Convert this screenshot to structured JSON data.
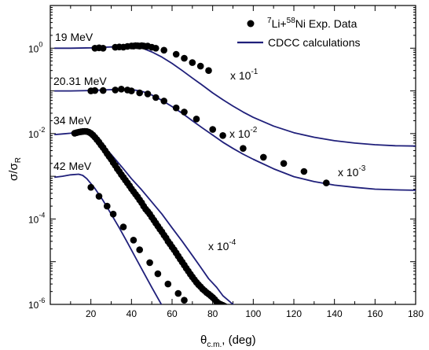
{
  "chart_data": {
    "type": "scatter",
    "x_axis": {
      "label_main": "θ",
      "label_sub": "c.m.",
      "label_unit": ", (deg)",
      "range": [
        0,
        180
      ],
      "ticks": [
        20,
        40,
        60,
        80,
        100,
        120,
        140,
        160,
        180
      ],
      "tick_labels": [
        "20",
        "40",
        "60",
        "80",
        "100",
        "120",
        "140",
        "160",
        "180"
      ]
    },
    "y_axis": {
      "label_main": "σ/σ",
      "label_sub": "R",
      "scale": "log",
      "range_log10": [
        -6,
        1
      ],
      "tick_decades": [
        -6,
        -4,
        -2,
        0
      ],
      "tick_labels": [
        {
          "base": "10",
          "exp": "-6"
        },
        {
          "base": "10",
          "exp": "-4"
        },
        {
          "base": "10",
          "exp": "-2"
        },
        {
          "base": "10",
          "exp": "0"
        }
      ]
    },
    "legend": {
      "position": "top-right",
      "entries": [
        {
          "kind": "marker",
          "text_pre": "",
          "sup1": "7",
          "text_mid": "Li+",
          "sup2": "58",
          "text_post": "Ni Exp. Data"
        },
        {
          "kind": "line",
          "text": "CDCC calculations"
        }
      ]
    },
    "line_color": "#1f1f7a",
    "marker_color": "#000000",
    "series": [
      {
        "energy_label": "19 MeV",
        "scale_base": "x  10",
        "scale_exp": "-1",
        "cdcc": {
          "x": [
            2,
            10,
            20,
            26,
            30,
            34,
            38,
            42,
            46,
            50,
            55,
            60,
            65,
            70,
            75,
            80,
            85,
            90,
            95,
            100,
            110,
            120,
            130,
            140,
            150,
            160,
            170,
            180
          ],
          "y": [
            1.0,
            1.0,
            1.02,
            1.05,
            1.07,
            1.09,
            1.1,
            1.08,
            0.98,
            0.82,
            0.62,
            0.44,
            0.3,
            0.2,
            0.135,
            0.09,
            0.062,
            0.044,
            0.032,
            0.024,
            0.015,
            0.0105,
            0.0082,
            0.0068,
            0.006,
            0.0055,
            0.0052,
            0.0051
          ]
        },
        "data": {
          "x": [
            22,
            24,
            26,
            32,
            34,
            36,
            38,
            40,
            41,
            42,
            43,
            44,
            45,
            46,
            47,
            48,
            50,
            52,
            56,
            62,
            66,
            70,
            74,
            78
          ],
          "y": [
            1.0,
            1.02,
            1.0,
            1.05,
            1.07,
            1.06,
            1.1,
            1.13,
            1.12,
            1.15,
            1.14,
            1.12,
            1.15,
            1.13,
            1.1,
            1.12,
            1.05,
            1.0,
            0.9,
            0.72,
            0.58,
            0.46,
            0.38,
            0.3
          ]
        }
      },
      {
        "energy_label": "20.31 MeV",
        "scale_base": "x  10",
        "scale_exp": "-2",
        "cdcc": {
          "x": [
            2,
            10,
            20,
            26,
            30,
            34,
            38,
            42,
            46,
            50,
            55,
            60,
            65,
            70,
            75,
            80,
            85,
            90,
            95,
            100,
            110,
            120,
            130,
            140,
            150,
            160,
            170,
            180
          ],
          "y": [
            0.1,
            0.1,
            0.102,
            0.105,
            0.107,
            0.108,
            0.108,
            0.104,
            0.095,
            0.08,
            0.06,
            0.043,
            0.03,
            0.02,
            0.0135,
            0.0092,
            0.0063,
            0.0045,
            0.0033,
            0.0025,
            0.0015,
            0.00098,
            0.00075,
            0.00062,
            0.00055,
            0.0005,
            0.00048,
            0.00047
          ]
        },
        "data": {
          "x": [
            20,
            22,
            26,
            32,
            35,
            38,
            40,
            44,
            48,
            52,
            56,
            62,
            66,
            72,
            80,
            85,
            95,
            105,
            115,
            125,
            136
          ],
          "y": [
            0.1,
            0.102,
            0.102,
            0.105,
            0.11,
            0.105,
            0.1,
            0.09,
            0.085,
            0.07,
            0.058,
            0.04,
            0.032,
            0.022,
            0.0125,
            0.009,
            0.0045,
            0.0028,
            0.002,
            0.0013,
            0.0007
          ]
        }
      },
      {
        "energy_label": "34 MeV",
        "scale_base": "x  10",
        "scale_exp": "-3",
        "cdcc": {
          "x": [
            2,
            6,
            10,
            14,
            17,
            20,
            24,
            28,
            32,
            36,
            40,
            45,
            50,
            55,
            60,
            65,
            70,
            74,
            78,
            82,
            85,
            90,
            95,
            100,
            105,
            110,
            115
          ],
          "y": [
            0.0095,
            0.0098,
            0.0102,
            0.011,
            0.0112,
            0.0098,
            0.0068,
            0.0042,
            0.0025,
            0.0015,
            0.00088,
            0.00048,
            0.00025,
            0.00013,
            6.2e-05,
            3e-05,
            1.4e-05,
            7.5e-06,
            4e-06,
            2.5e-06,
            1.6e-06,
            1e-06,
            8e-07,
            6.5e-07,
            5e-07,
            2.5e-07,
            1e-07
          ]
        },
        "data": {
          "x": [
            12,
            13,
            14,
            15,
            16,
            17,
            18,
            19,
            20,
            21,
            22,
            23,
            24,
            25,
            26,
            27,
            28,
            29,
            30,
            31,
            32,
            33,
            34,
            35,
            36,
            37,
            38,
            39,
            40,
            41,
            42,
            43,
            44,
            45,
            46,
            47,
            48,
            49,
            50,
            51,
            52,
            53,
            54,
            55,
            56,
            57,
            58,
            59,
            60,
            61,
            62,
            63,
            64,
            65,
            66,
            67,
            68,
            69,
            70,
            71,
            72,
            73,
            74,
            75,
            76,
            77,
            78,
            79,
            80,
            81,
            82,
            83,
            84,
            85,
            86
          ],
          "y": [
            0.0102,
            0.0105,
            0.0108,
            0.011,
            0.0112,
            0.0113,
            0.0112,
            0.0108,
            0.0101,
            0.0092,
            0.0082,
            0.0072,
            0.0063,
            0.0054,
            0.0047,
            0.004,
            0.0034,
            0.0029,
            0.0025,
            0.0021,
            0.0018,
            0.0015,
            0.0013,
            0.0011,
            0.00095,
            0.00081,
            0.0007,
            0.0006,
            0.00051,
            0.00044,
            0.00038,
            0.00033,
            0.00028,
            0.00024,
            0.0002,
            0.00017,
            0.00015,
            0.00013,
            0.00011,
            9.4e-05,
            8e-05,
            6.8e-05,
            5.8e-05,
            5e-05,
            4.2e-05,
            3.6e-05,
            3e-05,
            2.6e-05,
            2.2e-05,
            1.9e-05,
            1.6e-05,
            1.35e-05,
            1.15e-05,
            9.8e-06,
            8.3e-06,
            7e-06,
            6e-06,
            5.1e-06,
            4.4e-06,
            3.8e-06,
            3.3e-06,
            2.9e-06,
            2.6e-06,
            2.3e-06,
            2.1e-06,
            1.9e-06,
            1.75e-06,
            1.6e-06,
            1.45e-06,
            1.3e-06,
            1.15e-06,
            1.05e-06,
            1e-06,
            9.5e-07,
            9e-07
          ]
        }
      },
      {
        "energy_label": "42 MeV",
        "scale_base": "x  10",
        "scale_exp": "-4",
        "cdcc": {
          "x": [
            2,
            6,
            10,
            14,
            16,
            18,
            22,
            26,
            30,
            34,
            38,
            42,
            46,
            50,
            54,
            58,
            62,
            66,
            70
          ],
          "y": [
            0.00095,
            0.001,
            0.00108,
            0.00112,
            0.00105,
            0.00088,
            0.00052,
            0.00027,
            0.00013,
            6.2e-05,
            2.8e-05,
            1.25e-05,
            5.6e-06,
            2.5e-06,
            1.15e-06,
            5.3e-07,
            2.5e-07,
            1.2e-07,
            6e-08
          ]
        },
        "data": {
          "x": [
            20,
            24,
            28,
            31,
            36,
            41,
            44,
            49,
            53,
            58,
            63,
            66
          ],
          "y": [
            0.00055,
            0.00034,
            0.0002,
            0.00013,
            6.5e-05,
            3.2e-05,
            1.9e-05,
            9.5e-06,
            5.2e-06,
            3e-06,
            1.8e-06,
            1.25e-06
          ]
        }
      }
    ]
  }
}
